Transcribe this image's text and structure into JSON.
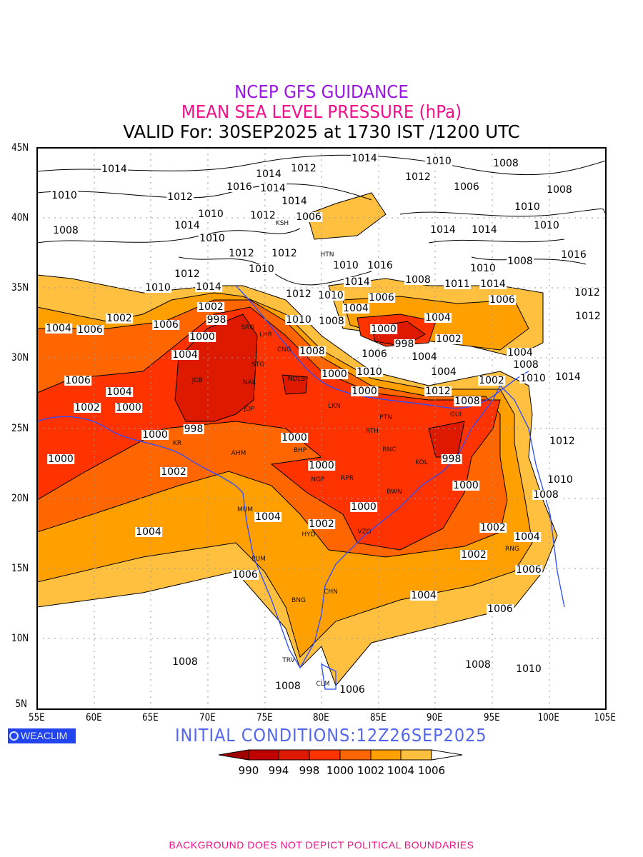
{
  "title": {
    "line1": "NCEP GFS GUIDANCE",
    "line2": "MEAN SEA LEVEL PRESSURE (hPa)",
    "line3": "VALID For: 30SEP2025 at 1730 IST /1200 UTC"
  },
  "axes": {
    "lat_labels": [
      "45N",
      "40N",
      "35N",
      "30N",
      "25N",
      "20N",
      "15N",
      "10N",
      "5N"
    ],
    "lon_labels": [
      "55E",
      "60E",
      "65E",
      "70E",
      "75E",
      "80E",
      "85E",
      "90E",
      "95E",
      "100E",
      "105E"
    ]
  },
  "colors": {
    "b990": "#a00000",
    "b994": "#c00000",
    "b998": "#dd1a00",
    "b1000": "#ff3300",
    "b1002": "#ff6600",
    "b1004": "#ffa000",
    "b1006": "#ffc040",
    "coast": "#2b4cff"
  },
  "colorbar": {
    "labels": [
      "990",
      "994",
      "998",
      "1000",
      "1002",
      "1004",
      "1006"
    ]
  },
  "contour_labels": [
    "1014",
    "1014",
    "1010",
    "1012",
    "1008",
    "1012",
    "1014",
    "1016",
    "1014",
    "1006",
    "1008",
    "1010",
    "1012",
    "1014",
    "1010",
    "1014",
    "1012",
    "1006",
    "1010",
    "1008",
    "1014",
    "1014",
    "1010",
    "1010",
    "1012",
    "1012",
    "1008",
    "1016",
    "1010",
    "1016",
    "1010",
    "1010",
    "1012",
    "1014",
    "1008",
    "1014",
    "1010",
    "1012",
    "1010",
    "1006",
    "1011",
    "1014",
    "1006",
    "1012",
    "1002",
    "998",
    "1004",
    "1002",
    "1004",
    "1010",
    "1008",
    "1012",
    "1006",
    "1000",
    "1004",
    "1006",
    "1000",
    "1002",
    "998",
    "1008",
    "1006",
    "1004",
    "1004",
    "1004",
    "1008",
    "1010",
    "1000",
    "1006",
    "1004",
    "1010",
    "1014",
    "1002",
    "1004",
    "1012",
    "1000",
    "1008",
    "1002",
    "1000",
    "998",
    "1000",
    "1000",
    "1012",
    "1000",
    "998",
    "1000",
    "1002",
    "1010",
    "1000",
    "1008",
    "1000",
    "1004",
    "1002",
    "1004",
    "1002",
    "1004",
    "1002",
    "1006",
    "1006",
    "1004",
    "1006",
    "1008",
    "1008",
    "1010",
    "1008",
    "1006"
  ],
  "cities": [
    "KSH",
    "HTN",
    "SRG",
    "LHR",
    "CNG",
    "STG",
    "NAL",
    "JCB",
    "NDLS",
    "JDP",
    "LKN",
    "PTN",
    "RTH",
    "KR",
    "AHM",
    "BHP",
    "RNC",
    "KOL",
    "NGP",
    "RPR",
    "BWN",
    "MUM",
    "HYD",
    "VZG",
    "PUM",
    "RNG",
    "CHN",
    "BNG",
    "TRV",
    "CLM",
    "GUI"
  ],
  "logo": "WEACLIM",
  "initial_conditions": "INITIAL  CONDITIONS:12Z26SEP2025",
  "footer": "BACKGROUND DOES NOT DEPICT POLITICAL BOUNDARIES"
}
